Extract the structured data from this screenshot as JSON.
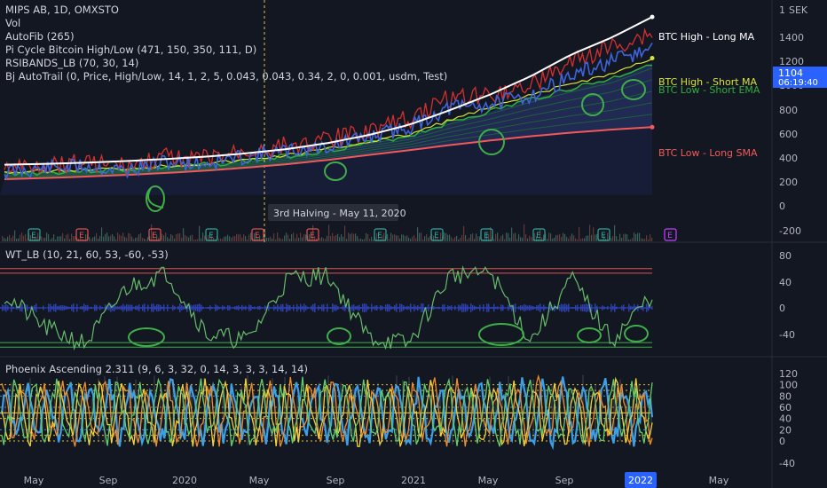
{
  "header": {
    "symbol_line": "MIPS AB, 1D, OMXSTO",
    "indicators": [
      "Vol",
      "AutoFib (265)",
      "Pi Cycle Bitcoin High/Low (471, 150, 350, 111, D)",
      "RSIBANDS_LB (70, 30, 14)",
      "Bj AutoTrail (0, Price, High/Low, 14, 1, 2, 5, 0.043, 0.043, 0.34, 2, 0, 0.001, usdm, Test)"
    ]
  },
  "currency": "SEK",
  "price_axis": {
    "ticks": [
      "1400",
      "1200",
      "1000",
      "800",
      "600",
      "400",
      "200",
      "0",
      "-200"
    ],
    "top_partial": "1",
    "last_price": "1104",
    "countdown": "06:19:40"
  },
  "line_labels": {
    "btc_high_long": "BTC High - Long MA",
    "btc_high_short": "BTC High - Short MA",
    "btc_low_short": "BTC Low - Short EMA",
    "btc_low_long": "BTC Low - Long SMA"
  },
  "halving_label": "3rd Halving - May 11, 2020",
  "earnings_badge": "E",
  "wt": {
    "title": "WT_LB (10, 21, 60, 53, -60, -53)",
    "ticks": [
      "80",
      "40",
      "0",
      "-40"
    ]
  },
  "phoenix": {
    "title": "Phoenix Ascending 2.311 (9, 6, 3, 32, 0, 14, 3, 3, 3, 14, 14)",
    "ticks": [
      "120",
      "100",
      "80",
      "60",
      "40",
      "20",
      "0",
      "-40"
    ]
  },
  "time_axis": {
    "labels": [
      "May",
      "Sep",
      "2020",
      "May",
      "Sep",
      "2021",
      "May",
      "Sep",
      "2022",
      "May"
    ],
    "highlight": "2022"
  },
  "colors": {
    "background": "#131722",
    "price": "#3f63d8",
    "highs": "#d32f2f",
    "long_ma": "#ffffff",
    "short_ma": "#d7e23b",
    "short_ema": "#2fae3c",
    "long_sma": "#f05a5a",
    "annotation": "#3fae49",
    "wt_line": "#66bb6a",
    "wt_hist": "#2f3fae"
  },
  "chart_data": [
    {
      "type": "line",
      "pane": "price",
      "x_axis_label": "",
      "y_axis_label": "",
      "ylim": [
        -300,
        1500
      ],
      "x": [
        "2019-04",
        "2019-06",
        "2019-09",
        "2019-12",
        "2020-02",
        "2020-04",
        "2020-06",
        "2020-09",
        "2020-11",
        "2021-01",
        "2021-03",
        "2021-05",
        "2021-07",
        "2021-09",
        "2021-11",
        "2021-12",
        "2022-01"
      ],
      "series": [
        {
          "name": "BTC High - Long MA",
          "values": [
            150,
            157,
            167,
            180,
            197,
            217,
            245,
            280,
            330,
            395,
            480,
            600,
            730,
            880,
            1060,
            1200,
            1370
          ]
        },
        {
          "name": "BTC High - Short MA",
          "values": [
            90,
            95,
            110,
            120,
            140,
            160,
            190,
            230,
            280,
            340,
            400,
            520,
            620,
            720,
            820,
            900,
            1030
          ]
        },
        {
          "name": "BTC Low - Short EMA",
          "values": [
            80,
            85,
            100,
            110,
            130,
            150,
            180,
            220,
            270,
            330,
            390,
            500,
            590,
            690,
            780,
            860,
            990
          ]
        },
        {
          "name": "BTC Low - Long SMA",
          "values": [
            30,
            40,
            52,
            66,
            82,
            102,
            126,
            155,
            190,
            230,
            270,
            312,
            350,
            385,
            415,
            440,
            460
          ]
        },
        {
          "values": [
            90,
            120,
            140,
            100,
            170,
            160,
            220,
            260,
            300,
            380,
            460,
            620,
            650,
            720,
            880,
            1000,
            1104
          ]
        }
      ]
    },
    {
      "type": "line",
      "pane": "wt",
      "x_axis_label": "",
      "y_axis_label": "",
      "ylim": [
        -60,
        90
      ],
      "levels": [
        60,
        53,
        0,
        -53,
        -60
      ],
      "series": [
        {
          "values": [
            20,
            -30,
            -55,
            30,
            55,
            -40,
            -50,
            45,
            50,
            -45,
            -55,
            50,
            55,
            -50,
            45,
            -50,
            20
          ]
        }
      ]
    },
    {
      "type": "line",
      "pane": "phoenix",
      "x_axis_label": "",
      "y_axis_label": "",
      "ylim": [
        -50,
        130
      ],
      "levels": [
        100,
        90,
        80,
        60,
        50,
        40,
        20,
        10,
        0
      ],
      "series": [
        {
          "values": [
            20,
            90,
            30,
            85,
            10,
            95,
            25,
            90,
            15,
            80,
            30,
            95,
            20,
            85,
            10,
            90,
            25
          ]
        },
        {
          "values": [
            40,
            80,
            10,
            95,
            30,
            70,
            15,
            100,
            35,
            75,
            20,
            90,
            40,
            70,
            15,
            95,
            30
          ]
        },
        {
          "values": [
            60,
            30,
            80,
            40,
            90,
            20,
            75,
            35,
            85,
            25,
            70,
            45,
            95,
            30,
            80,
            40,
            60
          ]
        },
        {
          "values": [
            30,
            70,
            50,
            60,
            45,
            80,
            40,
            55,
            70,
            35,
            65,
            50,
            60,
            75,
            40,
            65,
            50
          ]
        }
      ]
    }
  ]
}
